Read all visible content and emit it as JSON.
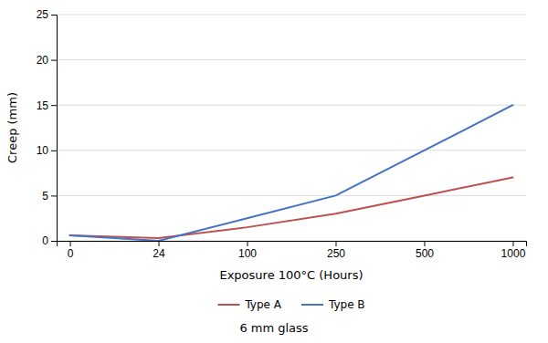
{
  "chart_data": {
    "type": "line",
    "subtitle": "6 mm glass",
    "x_label": "Exposure 100°C (Hours)",
    "y_label": "Creep (mm)",
    "categories": [
      "0",
      "24",
      "100",
      "250",
      "500",
      "1000"
    ],
    "series": [
      {
        "name": "Type A",
        "color": "#c0504d",
        "values": [
          0.6,
          0.3,
          1.5,
          3.0,
          5.0,
          7.0
        ]
      },
      {
        "name": "Type B",
        "color": "#4472c4",
        "values": [
          0.6,
          0.0,
          2.5,
          5.0,
          10.0,
          15.0
        ]
      }
    ],
    "ylim": [
      0,
      25
    ],
    "yticks": [
      0,
      5,
      10,
      15,
      20,
      25
    ],
    "grid": true,
    "legend": "bottom"
  }
}
